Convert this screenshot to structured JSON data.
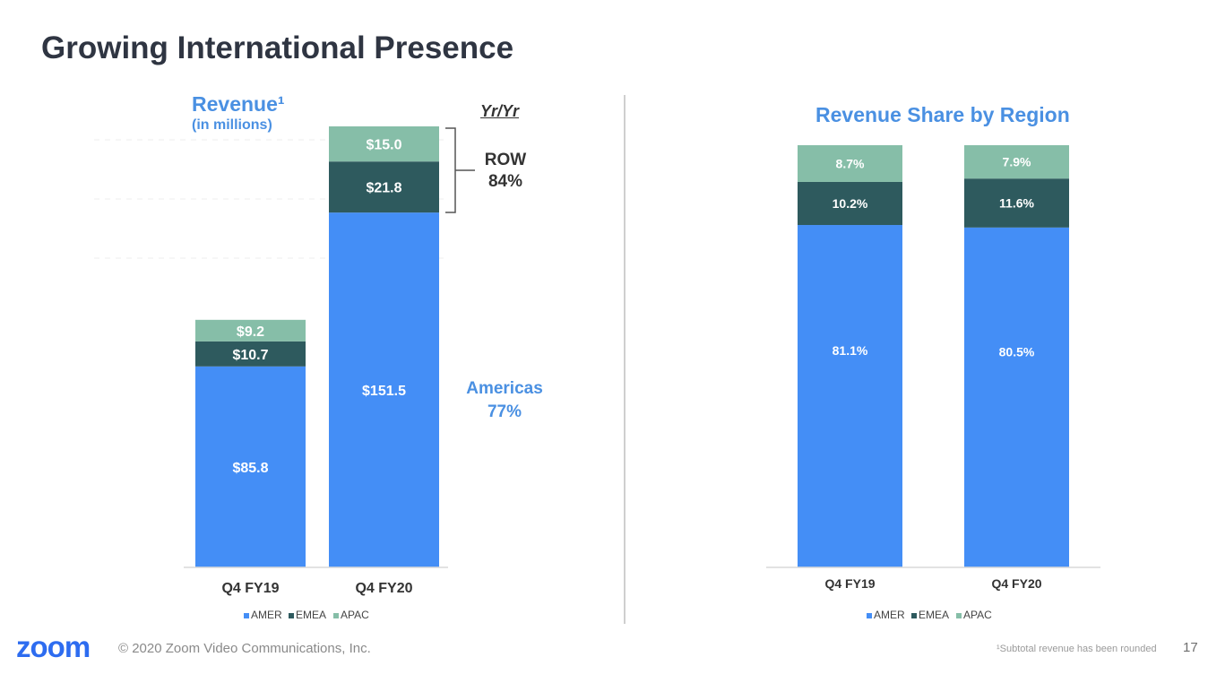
{
  "page": {
    "title": "Growing International Presence",
    "footer_logo": "zoom",
    "copyright": "© 2020 Zoom Video Communications, Inc.",
    "footnote": "¹Subtotal revenue has been rounded",
    "page_number": "17"
  },
  "colors": {
    "amer": "#448ef6",
    "emea": "#2e5a5e",
    "apac": "#86bea8",
    "accent": "#4a90e2"
  },
  "revenue_panel": {
    "title": "Revenue¹",
    "subtitle": "(in millions)",
    "yoy_header": "Yr/Yr",
    "row_label": "ROW",
    "row_value": "84%",
    "americas_label": "Americas",
    "americas_value": "77%"
  },
  "share_panel": {
    "title": "Revenue Share by Region"
  },
  "chart_data": [
    {
      "type": "bar",
      "stacked": true,
      "title": "Revenue¹ (in millions)",
      "categories": [
        "Q4 FY19",
        "Q4 FY20"
      ],
      "series": [
        {
          "name": "AMER",
          "values": [
            85.8,
            151.5
          ],
          "labels": [
            "$85.8",
            "$151.5"
          ]
        },
        {
          "name": "EMEA",
          "values": [
            10.7,
            21.8
          ],
          "labels": [
            "$10.7",
            "$21.8"
          ]
        },
        {
          "name": "APAC",
          "values": [
            9.2,
            15.0
          ],
          "labels": [
            "$9.2",
            "$15.0"
          ]
        }
      ],
      "ylim": [
        0,
        200
      ],
      "legend": "bottom"
    },
    {
      "type": "bar",
      "stacked": true,
      "title": "Revenue Share by Region",
      "categories": [
        "Q4 FY19",
        "Q4 FY20"
      ],
      "series": [
        {
          "name": "AMER",
          "values": [
            81.1,
            80.5
          ],
          "labels": [
            "81.1%",
            "80.5%"
          ]
        },
        {
          "name": "EMEA",
          "values": [
            10.2,
            11.6
          ],
          "labels": [
            "10.2%",
            "11.6%"
          ]
        },
        {
          "name": "APAC",
          "values": [
            8.7,
            7.9
          ],
          "labels": [
            "8.7%",
            "7.9%"
          ]
        }
      ],
      "ylim": [
        0,
        100
      ],
      "legend": "bottom"
    }
  ]
}
